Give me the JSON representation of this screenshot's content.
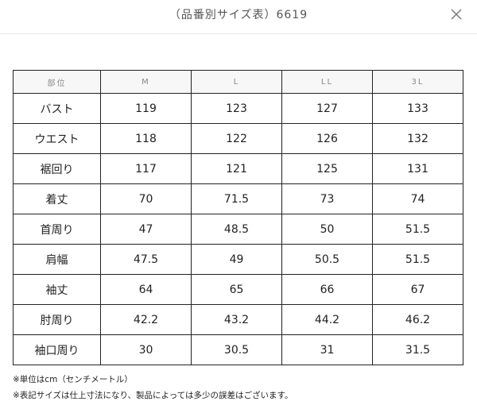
{
  "header": {
    "title": "（品番別サイズ表）6619"
  },
  "table": {
    "columns": [
      "部位",
      "M",
      "L",
      "LL",
      "3L"
    ],
    "rows": [
      {
        "label": "バスト",
        "values": [
          "119",
          "123",
          "127",
          "133"
        ]
      },
      {
        "label": "ウエスト",
        "values": [
          "118",
          "122",
          "126",
          "132"
        ]
      },
      {
        "label": "裾回り",
        "values": [
          "117",
          "121",
          "125",
          "131"
        ]
      },
      {
        "label": "着丈",
        "values": [
          "70",
          "71.5",
          "73",
          "74"
        ]
      },
      {
        "label": "首周り",
        "values": [
          "47",
          "48.5",
          "50",
          "51.5"
        ]
      },
      {
        "label": "肩幅",
        "values": [
          "47.5",
          "49",
          "50.5",
          "51.5"
        ]
      },
      {
        "label": "袖丈",
        "values": [
          "64",
          "65",
          "66",
          "67"
        ]
      },
      {
        "label": "肘周り",
        "values": [
          "42.2",
          "43.2",
          "44.2",
          "46.2"
        ]
      },
      {
        "label": "袖口周り",
        "values": [
          "30",
          "30.5",
          "31",
          "31.5"
        ]
      }
    ]
  },
  "notes": [
    "※単位はcm（センチメートル）",
    "※表記サイズは仕上寸法になり、製品によっては多少の誤差はございます。"
  ],
  "icons": {
    "close": "close-icon"
  }
}
